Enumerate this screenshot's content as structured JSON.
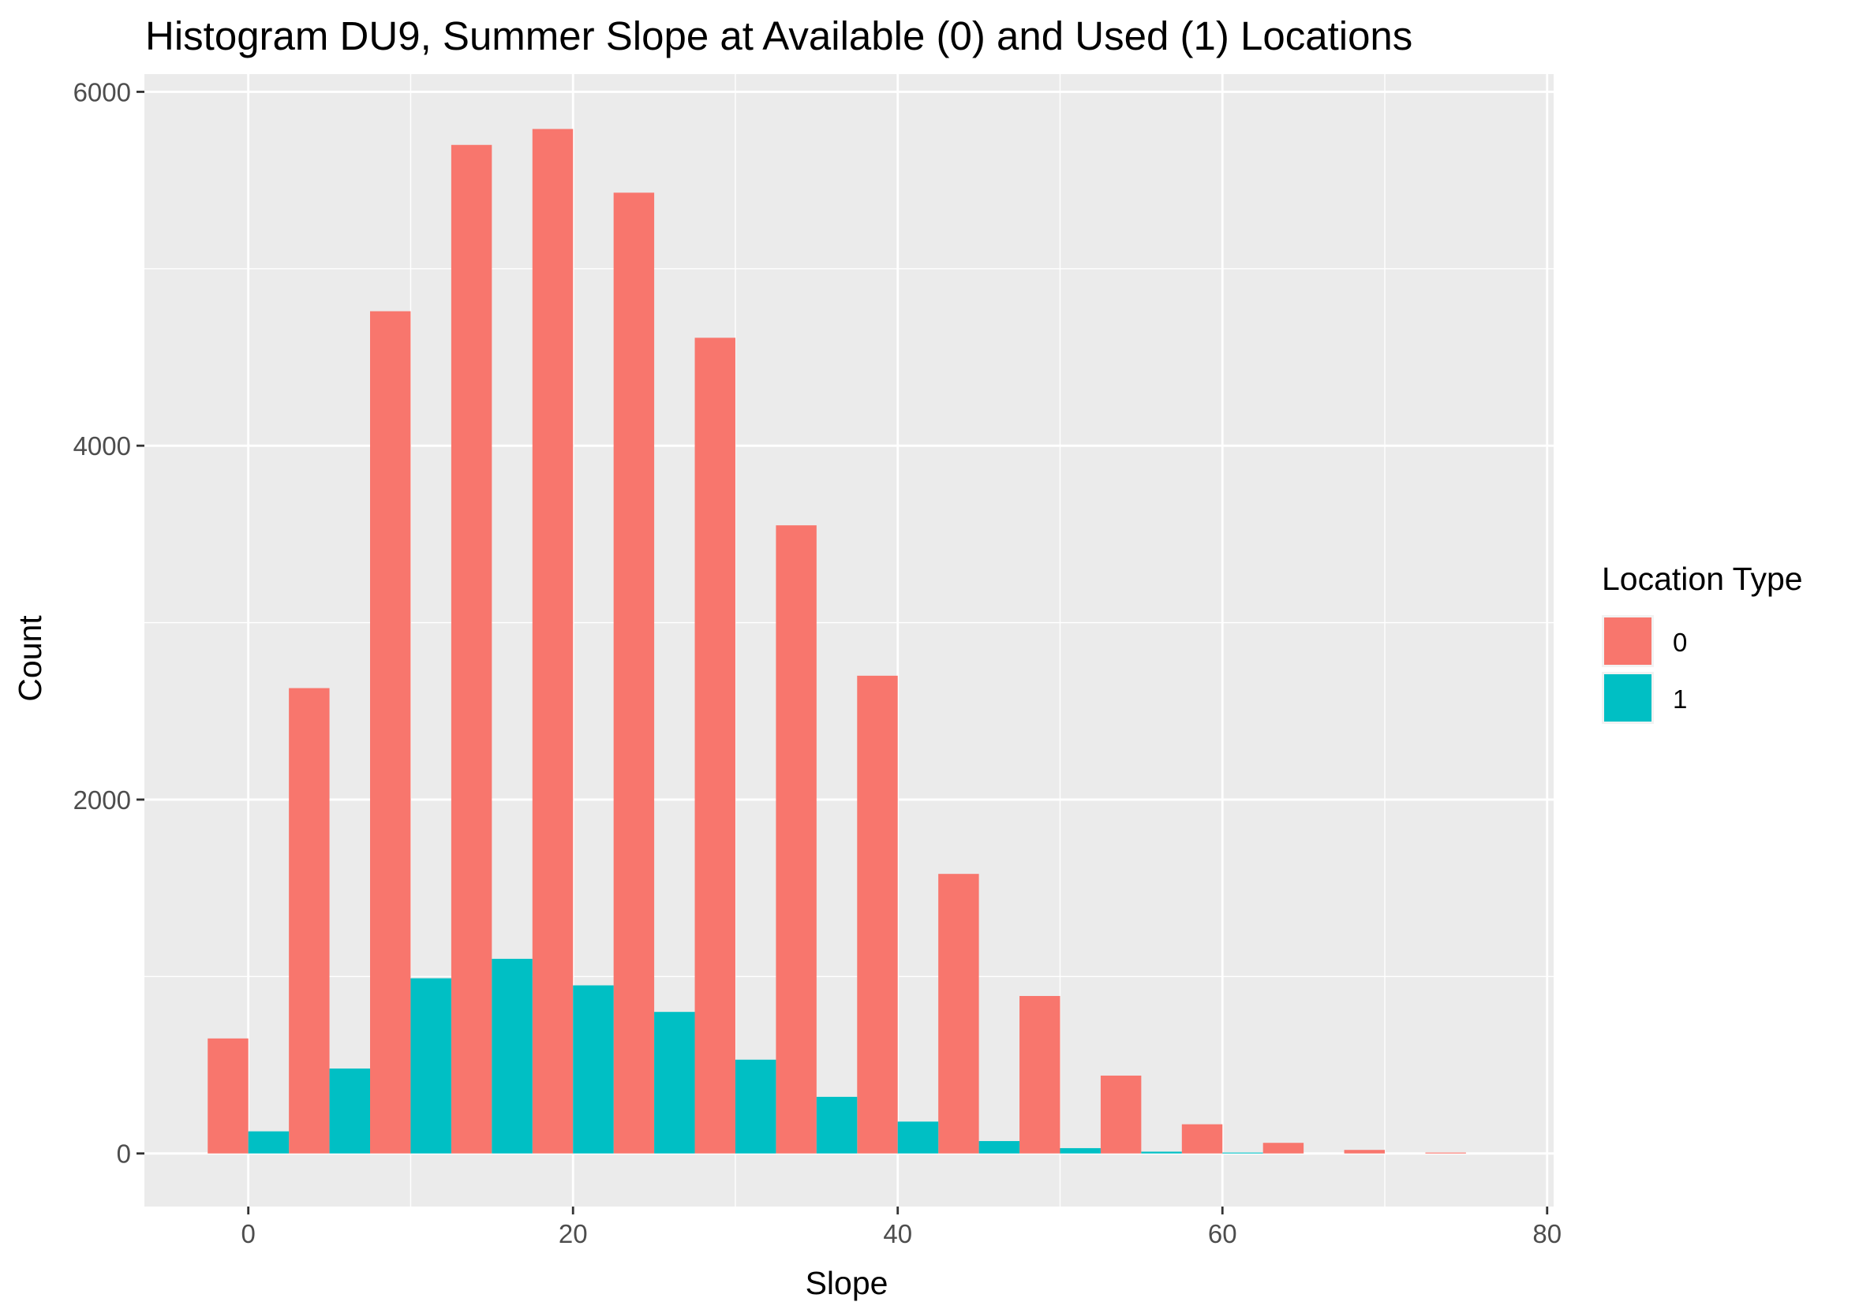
{
  "chart_data": {
    "type": "bar",
    "title": "Histogram DU9, Summer Slope at Available (0) and Used (1) Locations",
    "xlabel": "Slope",
    "ylabel": "Count",
    "xlim": [
      -6.4,
      80.4
    ],
    "ylim": [
      -300,
      6100
    ],
    "x_ticks": [
      0,
      20,
      40,
      60,
      80
    ],
    "y_ticks": [
      0,
      2000,
      4000,
      6000
    ],
    "x_tick_labels": [
      "0",
      "20",
      "40",
      "60",
      "80"
    ],
    "y_tick_labels": [
      "0",
      "2000",
      "4000",
      "6000"
    ],
    "bin_width": 5,
    "bin_centers": [
      0,
      5,
      10,
      15,
      20,
      25,
      30,
      35,
      40,
      45,
      50,
      55,
      60,
      65,
      70,
      75
    ],
    "grid": true,
    "legend": {
      "title": "Location Type",
      "position": "right"
    },
    "series": [
      {
        "name": "0",
        "color": "#F8766D",
        "values": [
          650,
          2630,
          4760,
          5700,
          5790,
          5430,
          4610,
          3550,
          2700,
          1580,
          890,
          440,
          165,
          60,
          20,
          5
        ]
      },
      {
        "name": "1",
        "color": "#00BFC4",
        "values": [
          125,
          480,
          990,
          1100,
          950,
          800,
          530,
          320,
          180,
          70,
          30,
          10,
          5,
          0,
          0,
          0
        ]
      }
    ]
  }
}
